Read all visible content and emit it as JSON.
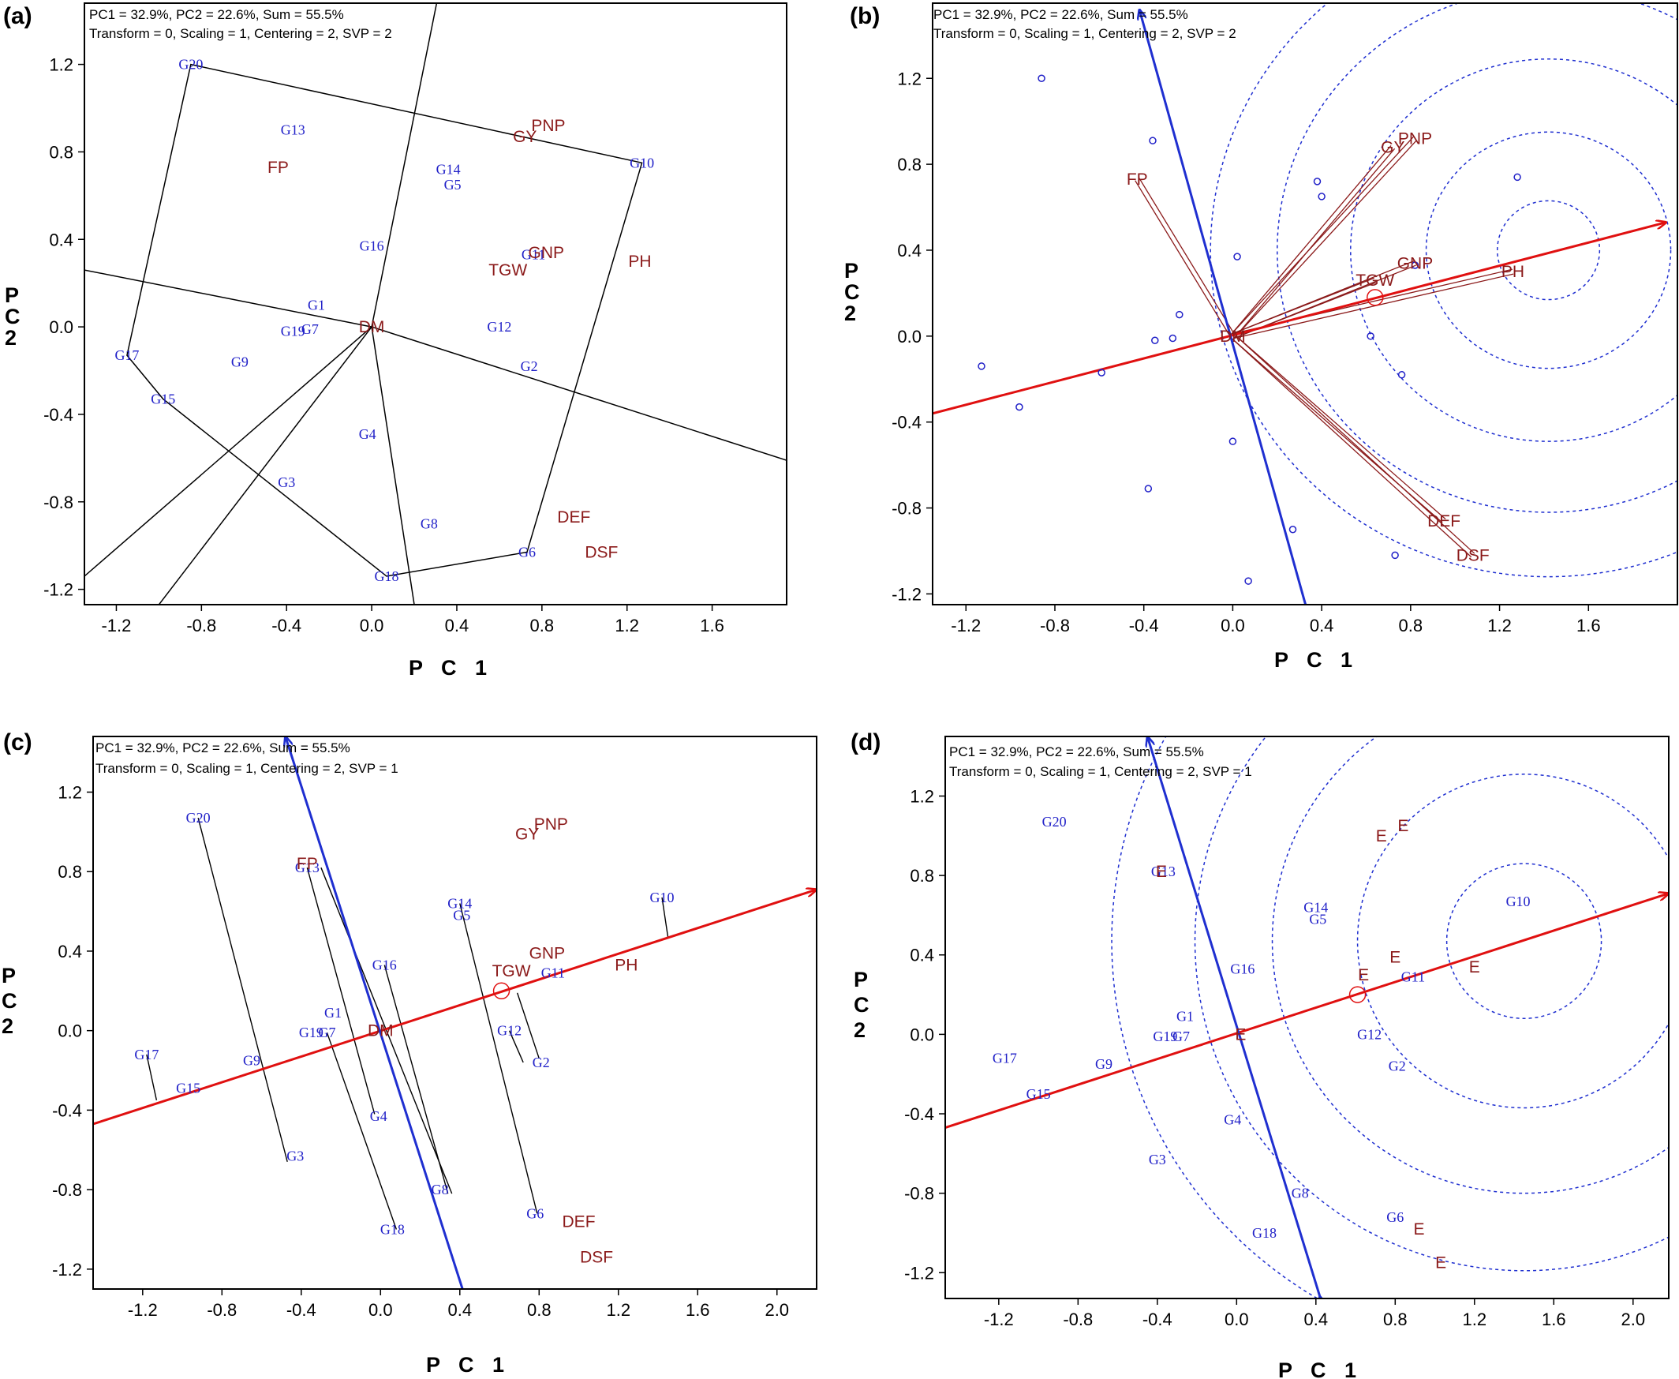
{
  "figure": {
    "header_line1": "PC1 = 32.9%, PC2 = 22.6%, Sum = 55.5%",
    "colors": {
      "genotype": "#2020c8",
      "trait": "#8b1a1a",
      "ata": "#e01010",
      "perp": "#1f2fd0",
      "poly": "#000000",
      "circle": "#1f2fd0"
    }
  },
  "chart_data": [
    {
      "type": "scatter",
      "panel": "(a)",
      "subtitle": "Transform = 0, Scaling = 1, Centering = 2, SVP = 2",
      "xlabel": "P C 1",
      "ylabel": "P C 2",
      "xlim": [
        -1.35,
        1.95
      ],
      "ylim": [
        -1.27,
        1.48
      ],
      "xticks": [
        -1.2,
        -0.8,
        -0.4,
        0.0,
        0.4,
        0.8,
        1.2,
        1.6
      ],
      "yticks": [
        -1.2,
        -0.8,
        -0.4,
        0.0,
        0.4,
        0.8,
        1.2
      ],
      "genotypes": [
        {
          "name": "G20",
          "x": -0.85,
          "y": 1.2
        },
        {
          "name": "G13",
          "x": -0.37,
          "y": 0.9
        },
        {
          "name": "G14",
          "x": 0.36,
          "y": 0.72
        },
        {
          "name": "G5",
          "x": 0.38,
          "y": 0.65
        },
        {
          "name": "G10",
          "x": 1.27,
          "y": 0.75
        },
        {
          "name": "G16",
          "x": 0.0,
          "y": 0.37
        },
        {
          "name": "G11",
          "x": 0.76,
          "y": 0.33
        },
        {
          "name": "G1",
          "x": -0.26,
          "y": 0.1
        },
        {
          "name": "G19",
          "x": -0.37,
          "y": -0.02
        },
        {
          "name": "G7",
          "x": -0.29,
          "y": -0.01
        },
        {
          "name": "G12",
          "x": 0.6,
          "y": 0.0
        },
        {
          "name": "G2",
          "x": 0.74,
          "y": -0.18
        },
        {
          "name": "G17",
          "x": -1.15,
          "y": -0.13
        },
        {
          "name": "G9",
          "x": -0.62,
          "y": -0.16
        },
        {
          "name": "G15",
          "x": -0.98,
          "y": -0.33
        },
        {
          "name": "G4",
          "x": -0.02,
          "y": -0.49
        },
        {
          "name": "G3",
          "x": -0.4,
          "y": -0.71
        },
        {
          "name": "G8",
          "x": 0.27,
          "y": -0.9
        },
        {
          "name": "G6",
          "x": 0.73,
          "y": -1.03
        },
        {
          "name": "G18",
          "x": 0.07,
          "y": -1.14
        }
      ],
      "traits": [
        {
          "name": "PNP",
          "x": 0.83,
          "y": 0.92
        },
        {
          "name": "GY",
          "x": 0.72,
          "y": 0.87
        },
        {
          "name": "FP",
          "x": -0.44,
          "y": 0.73
        },
        {
          "name": "GNP",
          "x": 0.82,
          "y": 0.34
        },
        {
          "name": "TGW",
          "x": 0.64,
          "y": 0.26
        },
        {
          "name": "PH",
          "x": 1.26,
          "y": 0.3
        },
        {
          "name": "DM",
          "x": 0.0,
          "y": 0.0
        },
        {
          "name": "DEF",
          "x": 0.95,
          "y": -0.87
        },
        {
          "name": "DSF",
          "x": 1.08,
          "y": -1.03
        }
      ],
      "polygon": [
        [
          -0.85,
          1.2
        ],
        [
          1.27,
          0.75
        ],
        [
          0.73,
          -1.03
        ],
        [
          0.07,
          -1.14
        ],
        [
          -0.98,
          -0.33
        ],
        [
          -1.15,
          -0.13
        ]
      ]
    },
    {
      "type": "scatter",
      "panel": "(b)",
      "subtitle": "Transform = 0, Scaling = 1, Centering = 2, SVP = 2",
      "xlabel": "P C 1",
      "ylabel": "P C 2",
      "xlim": [
        -1.35,
        2.0
      ],
      "ylim": [
        -1.25,
        1.55
      ],
      "xticks": [
        -1.2,
        -0.8,
        -0.4,
        0.0,
        0.4,
        0.8,
        1.2,
        1.6
      ],
      "yticks": [
        -1.2,
        -0.8,
        -0.4,
        0.0,
        0.4,
        0.8,
        1.2
      ],
      "points": [
        [
          -0.86,
          1.2
        ],
        [
          -0.36,
          0.91
        ],
        [
          0.38,
          0.72
        ],
        [
          0.4,
          0.65
        ],
        [
          1.28,
          0.74
        ],
        [
          0.02,
          0.37
        ],
        [
          0.82,
          0.33
        ],
        [
          -0.24,
          0.1
        ],
        [
          -0.35,
          -0.02
        ],
        [
          -0.27,
          -0.01
        ],
        [
          0.62,
          0.0
        ],
        [
          0.76,
          -0.18
        ],
        [
          -1.13,
          -0.14
        ],
        [
          -0.59,
          -0.17
        ],
        [
          -0.96,
          -0.33
        ],
        [
          0.0,
          -0.49
        ],
        [
          -0.38,
          -0.71
        ],
        [
          0.27,
          -0.9
        ],
        [
          0.73,
          -1.02
        ],
        [
          0.07,
          -1.14
        ]
      ],
      "traits": [
        {
          "name": "PNP",
          "x": 0.82,
          "y": 0.92
        },
        {
          "name": "GY",
          "x": 0.72,
          "y": 0.88
        },
        {
          "name": "FP",
          "x": -0.43,
          "y": 0.73
        },
        {
          "name": "GNP",
          "x": 0.82,
          "y": 0.34
        },
        {
          "name": "TGW",
          "x": 0.64,
          "y": 0.26
        },
        {
          "name": "PH",
          "x": 1.26,
          "y": 0.3
        },
        {
          "name": "DM",
          "x": 0.0,
          "y": 0.0
        },
        {
          "name": "DEF",
          "x": 0.95,
          "y": -0.86
        },
        {
          "name": "DSF",
          "x": 1.08,
          "y": -1.02
        }
      ],
      "ata_end": [
        1.95,
        0.53
      ],
      "ata_start": [
        -1.35,
        -0.36
      ],
      "perp_top": [
        -0.42,
        1.52
      ],
      "perp_bottom": [
        0.33,
        -1.26
      ],
      "center": [
        1.42,
        0.4
      ],
      "circle_radii": [
        0.23,
        0.55,
        0.89,
        1.22,
        1.52
      ],
      "avg_marker": [
        0.64,
        0.18
      ]
    },
    {
      "type": "scatter",
      "panel": "(c)",
      "subtitle": "Transform = 0, Scaling = 1, Centering = 2, SVP = 1",
      "xlabel": "P C 1",
      "ylabel": "P C 2",
      "xlim": [
        -1.45,
        2.2
      ],
      "ylim": [
        -1.3,
        1.48
      ],
      "xticks": [
        -1.2,
        -0.8,
        -0.4,
        0.0,
        0.4,
        0.8,
        1.2,
        1.6,
        2.0
      ],
      "yticks": [
        -1.2,
        -0.8,
        -0.4,
        0.0,
        0.4,
        0.8,
        1.2
      ],
      "genotypes": [
        {
          "name": "G20",
          "x": -0.92,
          "y": 1.07
        },
        {
          "name": "G13",
          "x": -0.37,
          "y": 0.82
        },
        {
          "name": "G14",
          "x": 0.4,
          "y": 0.64
        },
        {
          "name": "G5",
          "x": 0.41,
          "y": 0.58
        },
        {
          "name": "G10",
          "x": 1.42,
          "y": 0.67
        },
        {
          "name": "G16",
          "x": 0.02,
          "y": 0.33
        },
        {
          "name": "G11",
          "x": 0.87,
          "y": 0.29
        },
        {
          "name": "G1",
          "x": -0.24,
          "y": 0.09
        },
        {
          "name": "G19",
          "x": -0.35,
          "y": -0.01
        },
        {
          "name": "G7",
          "x": -0.27,
          "y": -0.01
        },
        {
          "name": "G12",
          "x": 0.65,
          "y": 0.0
        },
        {
          "name": "G2",
          "x": 0.81,
          "y": -0.16
        },
        {
          "name": "G17",
          "x": -1.18,
          "y": -0.12
        },
        {
          "name": "G9",
          "x": -0.65,
          "y": -0.15
        },
        {
          "name": "G15",
          "x": -0.97,
          "y": -0.29
        },
        {
          "name": "G4",
          "x": -0.01,
          "y": -0.43
        },
        {
          "name": "G3",
          "x": -0.43,
          "y": -0.63
        },
        {
          "name": "G8",
          "x": 0.3,
          "y": -0.8
        },
        {
          "name": "G6",
          "x": 0.78,
          "y": -0.92
        },
        {
          "name": "G18",
          "x": 0.06,
          "y": -1.0
        }
      ],
      "traits": [
        {
          "name": "PNP",
          "x": 0.86,
          "y": 1.04
        },
        {
          "name": "GY",
          "x": 0.74,
          "y": 0.99
        },
        {
          "name": "FP",
          "x": -0.37,
          "y": 0.84
        },
        {
          "name": "GNP",
          "x": 0.84,
          "y": 0.39
        },
        {
          "name": "TGW",
          "x": 0.66,
          "y": 0.3
        },
        {
          "name": "PH",
          "x": 1.24,
          "y": 0.33
        },
        {
          "name": "DM",
          "x": 0.0,
          "y": 0.0
        },
        {
          "name": "DEF",
          "x": 1.0,
          "y": -0.96
        },
        {
          "name": "DSF",
          "x": 1.09,
          "y": -1.14
        }
      ],
      "ata_end": [
        2.2,
        0.71
      ],
      "ata_start": [
        -1.45,
        -0.47
      ],
      "perp_top": [
        -0.48,
        1.48
      ],
      "perp_bottom": [
        0.42,
        -1.32
      ],
      "avg_marker": [
        0.61,
        0.2
      ],
      "projection_lines": [
        [
          -0.92,
          1.07,
          -0.47,
          -0.66
        ],
        [
          -0.37,
          0.82,
          -0.03,
          -0.42
        ],
        [
          -0.3,
          0.82,
          0.36,
          -0.82
        ],
        [
          0.02,
          0.33,
          0.34,
          -0.82
        ],
        [
          -0.27,
          -0.01,
          0.08,
          -1.0
        ],
        [
          0.4,
          0.64,
          0.79,
          -0.92
        ],
        [
          0.65,
          0.0,
          0.72,
          -0.16
        ],
        [
          0.69,
          0.19,
          0.8,
          -0.14
        ],
        [
          -1.18,
          -0.12,
          -1.13,
          -0.35
        ],
        [
          1.42,
          0.67,
          1.45,
          0.47
        ]
      ]
    },
    {
      "type": "scatter",
      "panel": "(d)",
      "subtitle": "Transform = 0, Scaling = 1, Centering = 2, SVP = 1",
      "xlabel": "P C 1",
      "ylabel": "P C 2",
      "xlim": [
        -1.47,
        2.18
      ],
      "ylim": [
        -1.33,
        1.5
      ],
      "xticks": [
        -1.2,
        -0.8,
        -0.4,
        0.0,
        0.4,
        0.8,
        1.2,
        1.6,
        2.0
      ],
      "yticks": [
        -1.2,
        -0.8,
        -0.4,
        0.0,
        0.4,
        0.8,
        1.2
      ],
      "genotypes": [
        {
          "name": "G20",
          "x": -0.92,
          "y": 1.07
        },
        {
          "name": "G13",
          "x": -0.37,
          "y": 0.82
        },
        {
          "name": "G14",
          "x": 0.4,
          "y": 0.64
        },
        {
          "name": "G5",
          "x": 0.41,
          "y": 0.58
        },
        {
          "name": "G10",
          "x": 1.42,
          "y": 0.67
        },
        {
          "name": "G16",
          "x": 0.03,
          "y": 0.33
        },
        {
          "name": "G11",
          "x": 0.89,
          "y": 0.29
        },
        {
          "name": "G1",
          "x": -0.26,
          "y": 0.09
        },
        {
          "name": "G19",
          "x": -0.36,
          "y": -0.01
        },
        {
          "name": "G7",
          "x": -0.28,
          "y": -0.01
        },
        {
          "name": "G12",
          "x": 0.67,
          "y": 0.0
        },
        {
          "name": "G2",
          "x": 0.81,
          "y": -0.16
        },
        {
          "name": "G17",
          "x": -1.17,
          "y": -0.12
        },
        {
          "name": "G9",
          "x": -0.67,
          "y": -0.15
        },
        {
          "name": "G15",
          "x": -1.0,
          "y": -0.3
        },
        {
          "name": "G4",
          "x": -0.02,
          "y": -0.43
        },
        {
          "name": "G3",
          "x": -0.4,
          "y": -0.63
        },
        {
          "name": "G8",
          "x": 0.32,
          "y": -0.8
        },
        {
          "name": "G6",
          "x": 0.8,
          "y": -0.92
        },
        {
          "name": "G18",
          "x": 0.14,
          "y": -1.0
        }
      ],
      "traits_E": [
        [
          0.84,
          1.05
        ],
        [
          0.73,
          1.0
        ],
        [
          -0.38,
          0.82
        ],
        [
          0.8,
          0.39
        ],
        [
          0.64,
          0.3
        ],
        [
          1.2,
          0.34
        ],
        [
          0.02,
          0.0
        ],
        [
          0.92,
          -0.98
        ],
        [
          1.03,
          -1.15
        ]
      ],
      "ata_end": [
        2.18,
        0.71
      ],
      "ata_start": [
        -1.47,
        -0.47
      ],
      "perp_top": [
        -0.45,
        1.5
      ],
      "perp_bottom": [
        0.42,
        -1.32
      ],
      "center": [
        1.45,
        0.47
      ],
      "circle_radii": [
        0.39,
        0.84,
        1.27,
        1.66,
        2.08
      ],
      "avg_marker": [
        0.61,
        0.2
      ]
    }
  ]
}
